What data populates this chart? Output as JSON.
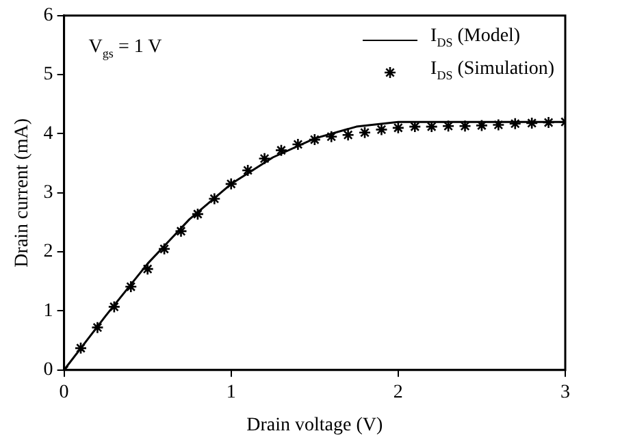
{
  "chart_data": {
    "type": "line",
    "xlabel": "Drain voltage (V)",
    "ylabel": "Drain current (mA)",
    "xlim": [
      0,
      3
    ],
    "xticks": [
      0,
      1,
      2,
      3
    ],
    "ylim": [
      0,
      6
    ],
    "yticks": [
      0,
      1,
      2,
      3,
      4,
      5,
      6
    ],
    "grid": false,
    "legend": "top right",
    "annotations": [
      "V$_{gs}$ = 1 V"
    ],
    "series": [
      {
        "name": "I$_{DS}$ (Model)",
        "color": "#000000",
        "marker": "none",
        "line_style": "solid",
        "x": [
          0,
          0.25,
          0.5,
          0.75,
          1.0,
          1.25,
          1.5,
          1.75,
          2.0,
          2.5,
          3.0
        ],
        "values": [
          0,
          0.92,
          1.8,
          2.55,
          3.15,
          3.6,
          3.92,
          4.12,
          4.2,
          4.2,
          4.2
        ]
      },
      {
        "name": "I$_{DS}$ (Simulation)",
        "type": "scatter",
        "color": "#000000",
        "marker": "cross",
        "x": [
          0,
          0.1,
          0.2,
          0.3,
          0.4,
          0.5,
          0.6,
          0.7,
          0.8,
          0.9,
          1.0,
          1.1,
          1.2,
          1.3,
          1.4,
          1.5,
          1.6,
          1.7,
          1.8,
          1.9,
          2.0,
          2.1,
          2.2,
          2.3,
          2.4,
          2.5,
          2.6,
          2.7,
          2.8,
          2.9,
          3.0
        ],
        "values": [
          0,
          0.37,
          0.72,
          1.07,
          1.41,
          1.71,
          2.05,
          2.35,
          2.64,
          2.9,
          3.15,
          3.38,
          3.58,
          3.72,
          3.82,
          3.9,
          3.95,
          3.98,
          4.02,
          4.07,
          4.1,
          4.12,
          4.12,
          4.13,
          4.13,
          4.14,
          4.15,
          4.17,
          4.18,
          4.19,
          4.2
        ]
      }
    ]
  }
}
